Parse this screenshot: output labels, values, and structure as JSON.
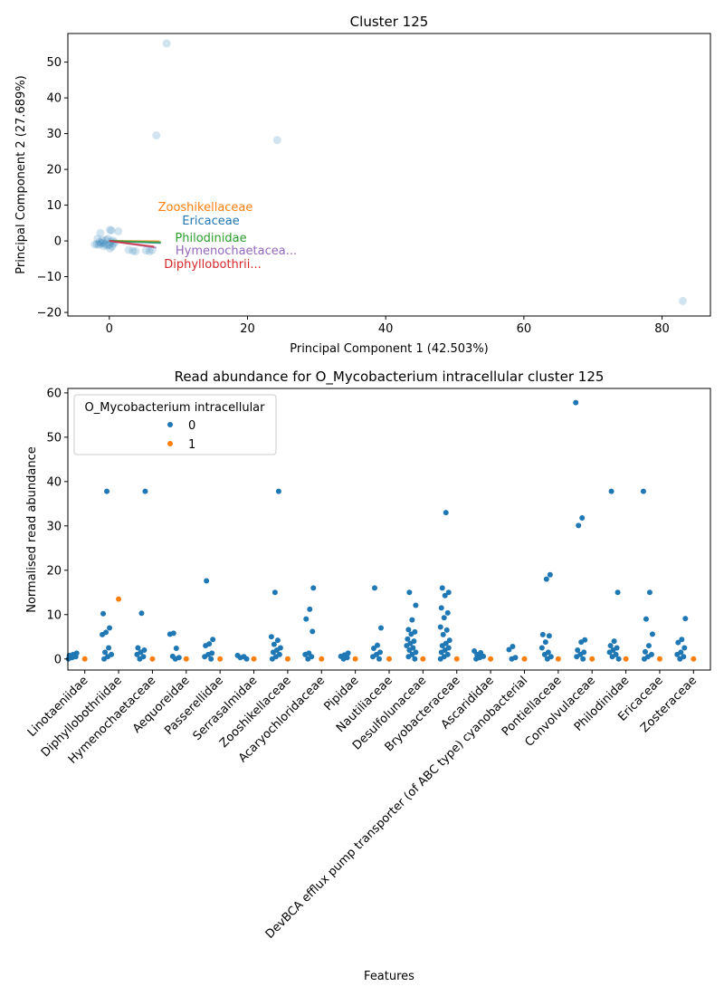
{
  "colors": {
    "series0": "#1f77b4",
    "series1": "#ff7f0e",
    "spine": "#000000"
  },
  "chart_data": [
    {
      "type": "scatter",
      "title": "Cluster 125",
      "xlabel": "Principal Component 1 (42.503%)",
      "ylabel": "Principal Component 2 (27.689%)",
      "xlim": [
        -6,
        87
      ],
      "ylim": [
        -21,
        58
      ],
      "xticks": [
        0,
        20,
        40,
        60,
        80
      ],
      "yticks": [
        -20,
        -10,
        0,
        10,
        20,
        30,
        40,
        50
      ],
      "grid": false,
      "points": [
        [
          8.3,
          55.2
        ],
        [
          6.8,
          29.5
        ],
        [
          24.3,
          28.2
        ],
        [
          83,
          -16.8
        ],
        [
          0.1,
          3.1
        ],
        [
          0.3,
          2.9
        ],
        [
          1.3,
          2.7
        ],
        [
          -1.3,
          2.2
        ],
        [
          -2.1,
          -1
        ],
        [
          -1.8,
          -0.9
        ],
        [
          -1.5,
          -1.1
        ],
        [
          -1.2,
          -0.7
        ],
        [
          -0.9,
          -0.5
        ],
        [
          -0.6,
          -0.9
        ],
        [
          -0.3,
          -1.3
        ],
        [
          0,
          -1.1
        ],
        [
          0.4,
          -1.6
        ],
        [
          0.6,
          -0.8
        ],
        [
          0.2,
          -0.2
        ],
        [
          -0.5,
          0.3
        ],
        [
          -1,
          0.2
        ],
        [
          -0.2,
          0.6
        ],
        [
          0.5,
          0.1
        ],
        [
          -1.4,
          -0.3
        ],
        [
          -0.8,
          -1.5
        ],
        [
          0.8,
          -0.4
        ],
        [
          -1.7,
          0.6
        ],
        [
          0.1,
          -2.1
        ],
        [
          2.8,
          -2.5
        ],
        [
          3.4,
          -2.8
        ],
        [
          3.8,
          -2.9
        ],
        [
          5.3,
          -2.7
        ],
        [
          5.8,
          -2.9
        ],
        [
          6.2,
          -2.6
        ]
      ],
      "loadings": [
        {
          "label": "Zooshikellaceae",
          "x": 7.3,
          "y": -0.1,
          "color": "#ff7f0e"
        },
        {
          "label": "Ericaceae",
          "x": 7.4,
          "y": -0.6,
          "color": "#1f77b4"
        },
        {
          "label": "Philodinidae",
          "x": 7.5,
          "y": -0.4,
          "color": "#2ca02c"
        },
        {
          "label": "Hymenochaetacea...",
          "x": 6.8,
          "y": -1.9,
          "color": "#9467bd"
        },
        {
          "label": "Diphyllobothrii...",
          "x": 6.5,
          "y": -1.6,
          "color": "#d62728"
        }
      ]
    },
    {
      "type": "scatter",
      "title": "Read abundance for O_Mycobacterium intracellular cluster 125",
      "xlabel": "Features",
      "ylabel": "Normalised read abundance",
      "ylim": [
        -2.5,
        61
      ],
      "yticks": [
        0,
        10,
        20,
        30,
        40,
        50,
        60
      ],
      "legend": {
        "title": "O_Mycobacterium intracellular",
        "entries": [
          "0",
          "1"
        ],
        "placement": "upper-left"
      },
      "categories": [
        "Linotaeniidae",
        "Diphyllobothriidae",
        "Hymenochaetaceae",
        "Aequoreidae",
        "Passerellidae",
        "Serrasalmidae",
        "Zooshikellaceae",
        "Acaryochloridaceae",
        "Pipidae",
        "Nautiliaceae",
        "Desulfolunaceae",
        "Bryobacteraceae",
        "Ascarididae",
        "DevBCA efflux pump transporter (of ABC type) cyanobacterial",
        "Pontiellaceae",
        "Convolvulaceae",
        "Philodinidae",
        "Ericaceae",
        "Zosteraceae"
      ],
      "series": [
        {
          "name": "0",
          "values": [
            [
              0,
              0.3,
              0.5,
              0.8,
              1,
              1.3
            ],
            [
              0,
              0.5,
              1,
              1.5,
              2.5,
              5.5,
              6,
              7,
              10.2,
              37.8
            ],
            [
              0,
              0.5,
              1,
              1.5,
              2,
              2.5,
              10.3,
              37.8
            ],
            [
              0,
              0.3,
              0.6,
              2.4,
              5.6,
              5.8
            ],
            [
              0,
              0.5,
              1,
              1.3,
              3,
              3.4,
              4.4,
              17.6
            ],
            [
              0,
              0.3,
              0.5,
              0.8
            ],
            [
              0,
              0.5,
              1,
              1.5,
              2,
              2.5,
              3.3,
              4.2,
              5,
              15,
              37.8
            ],
            [
              0,
              0.5,
              1,
              1.3,
              6.2,
              9,
              11.2,
              16
            ],
            [
              0,
              0.3,
              0.6,
              0.9,
              1.3
            ],
            [
              0,
              0.5,
              1,
              1.5,
              2.4,
              3.1,
              7,
              16
            ],
            [
              0,
              0.5,
              1,
              1.5,
              2,
              2.5,
              3,
              3.5,
              4,
              4.5,
              5.6,
              6.1,
              6.6,
              8.8,
              12.1,
              15
            ],
            [
              0,
              0.5,
              1,
              1.5,
              2,
              2.5,
              3,
              3.5,
              4.2,
              5.5,
              6.5,
              7.2,
              9.3,
              10.4,
              11.5,
              14.3,
              15,
              16,
              33
            ],
            [
              0,
              0.3,
              0.6,
              1,
              1.4,
              1.8
            ],
            [
              0,
              0.3,
              2.1,
              2.8
            ],
            [
              0,
              0.5,
              1,
              1.5,
              2.5,
              3.8,
              5.2,
              5.5,
              18,
              19
            ],
            [
              0,
              0.5,
              1,
              1.5,
              2,
              3.8,
              4.3,
              30.1,
              31.8,
              57.8
            ],
            [
              0,
              0.5,
              1,
              1.5,
              2,
              2.5,
              3,
              4,
              15,
              37.8
            ],
            [
              0,
              0.5,
              1,
              1.6,
              3,
              5.6,
              9,
              15,
              37.8
            ],
            [
              0,
              0.5,
              1,
              1.5,
              2.5,
              3.7,
              4.4,
              9.1
            ]
          ]
        },
        {
          "name": "1",
          "values": [
            [
              0
            ],
            [
              13.5
            ],
            [
              0
            ],
            [
              0
            ],
            [
              0
            ],
            [
              0
            ],
            [
              0
            ],
            [
              0
            ],
            [
              0
            ],
            [
              0
            ],
            [
              0
            ],
            [
              0
            ],
            [
              0
            ],
            [
              0
            ],
            [
              0
            ],
            [
              0
            ],
            [
              0
            ],
            [
              0
            ],
            [
              0
            ]
          ]
        }
      ]
    }
  ]
}
